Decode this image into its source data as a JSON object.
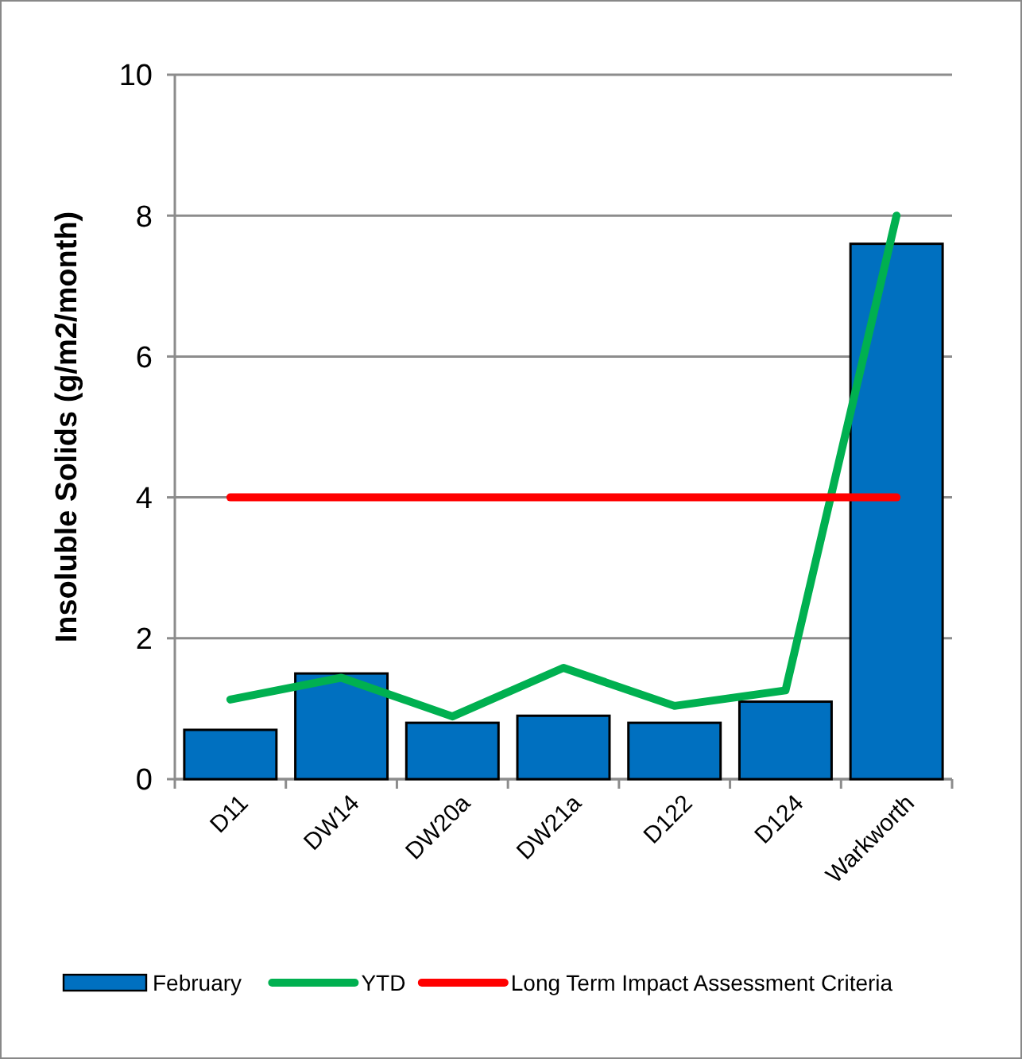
{
  "chart_data": {
    "type": "bar",
    "ylabel": "Insoluble Solids (g/m2/month)",
    "categories": [
      "D11",
      "DW14",
      "DW20a",
      "DW21a",
      "D122",
      "D124",
      "Warkworth"
    ],
    "series": [
      {
        "name": "February",
        "color": "#0070c0",
        "values": [
          0.7,
          1.5,
          0.8,
          0.9,
          0.8,
          1.1,
          7.6
        ]
      },
      {
        "name": "YTD",
        "type": "line",
        "color": "#00b050",
        "values": [
          1.13,
          1.44,
          0.89,
          1.58,
          1.04,
          1.26,
          8.0
        ]
      },
      {
        "name": "Long Term Impact Assessment Criteria",
        "type": "line",
        "color": "#ff0000",
        "values": [
          4,
          4,
          4,
          4,
          4,
          4,
          4
        ]
      }
    ],
    "ylim": [
      0,
      10
    ],
    "yticks": [
      0,
      2,
      4,
      6,
      8,
      10
    ],
    "grid": "y",
    "legend": "bottom",
    "marker": "none",
    "line_style": "solid"
  }
}
